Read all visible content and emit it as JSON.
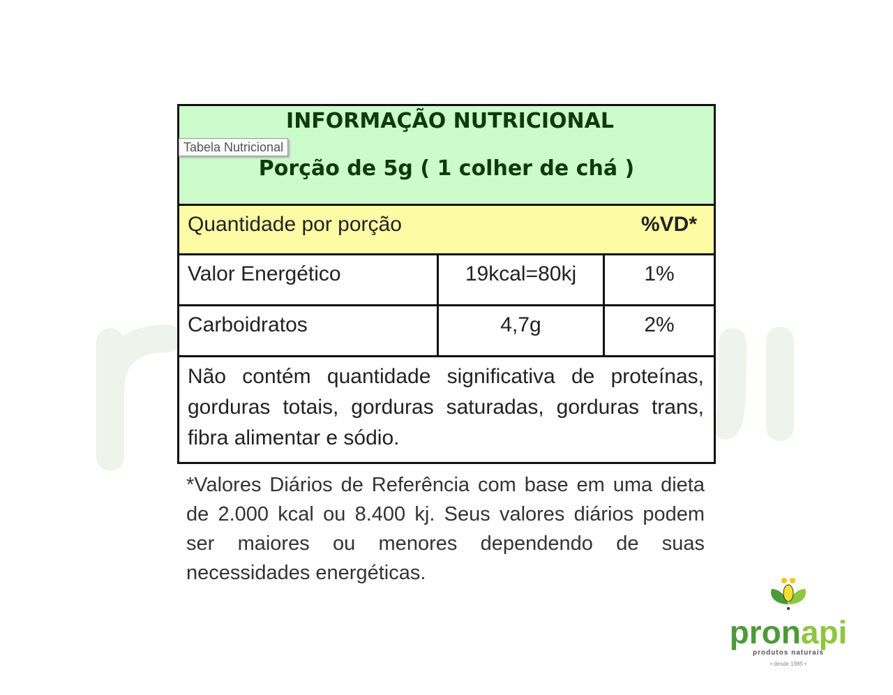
{
  "watermark": "pronapi",
  "tooltip": "Tabela Nutricional",
  "header": {
    "title": "INFORMAÇÃO NUTRICIONAL",
    "portion": "Porção de 5g ( 1 colher de chá )"
  },
  "subheader": {
    "label": "Quantidade por porção",
    "vd": "%VD*"
  },
  "rows": [
    {
      "name": "Valor Energético",
      "amount": "19kcal=80kj",
      "vd": "1%"
    },
    {
      "name": "Carboidratos",
      "amount": "4,7g",
      "vd": "2%"
    }
  ],
  "note": "Não contém quantidade significativa de proteínas, gorduras totais, gorduras saturadas, gorduras trans, fibra alimentar e sódio.",
  "footnote": "*Valores Diários de Referência com base em uma dieta de 2.000 kcal ou 8.400 kj. Seus valores diários podem ser maiores ou menores dependendo de suas necessidades energéticas.",
  "logo": {
    "word_part1": "pron",
    "word_part2": "api",
    "tagline": "produtos naturais",
    "since": "• desde 1985 •"
  },
  "colors": {
    "header_bg": "#ccfccc",
    "subheader_bg": "#fdfca5",
    "brand_dark": "#4e9a3a",
    "brand_light": "#8dc63f"
  }
}
